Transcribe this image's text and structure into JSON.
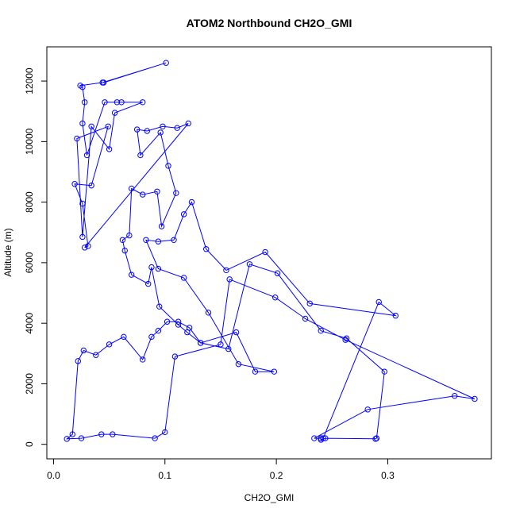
{
  "chart_data": {
    "type": "line",
    "title": "ATOM2 Northbound CH2O_GMI",
    "xlabel": "CH2O_GMI",
    "ylabel": "Altitude (m)",
    "xlim": [
      -0.006,
      0.393
    ],
    "ylim": [
      -480,
      13130
    ],
    "x_ticks": [
      0.0,
      0.1,
      0.2,
      0.3
    ],
    "x_tick_labels": [
      "0.0",
      "0.1",
      "0.2",
      "0.3"
    ],
    "y_ticks": [
      0,
      2000,
      4000,
      6000,
      8000,
      10000,
      12000
    ],
    "y_tick_labels": [
      "0",
      "2000",
      "4000",
      "6000",
      "8000",
      "10000",
      "12000"
    ],
    "grid": false,
    "legend": "none",
    "series": [
      {
        "color": "#0000ff",
        "marker": "open-circle",
        "x": [
          0.045,
          0.101,
          0.044,
          0.024,
          0.026,
          0.028,
          0.026,
          0.03,
          0.046,
          0.057,
          0.061,
          0.08,
          0.055,
          0.05,
          0.034,
          0.026,
          0.021,
          0.049,
          0.034,
          0.019,
          0.026,
          0.031,
          0.028,
          0.121,
          0.111,
          0.098,
          0.084,
          0.075,
          0.078,
          0.096,
          0.103,
          0.11,
          0.097,
          0.093,
          0.08,
          0.07,
          0.068,
          0.062,
          0.064,
          0.07,
          0.085,
          0.088,
          0.095,
          0.112,
          0.12,
          0.132,
          0.157,
          0.176,
          0.201,
          0.24,
          0.263,
          0.297,
          0.29,
          0.289,
          0.244,
          0.24,
          0.24,
          0.234,
          0.282,
          0.36,
          0.378,
          0.262,
          0.226,
          0.199,
          0.158,
          0.15,
          0.109,
          0.1,
          0.091,
          0.053,
          0.043,
          0.025,
          0.012,
          0.017,
          0.022,
          0.027,
          0.038,
          0.05,
          0.063,
          0.08,
          0.088,
          0.094,
          0.102,
          0.112,
          0.122,
          0.132,
          0.164,
          0.181,
          0.198,
          0.166,
          0.139,
          0.117,
          0.094,
          0.083,
          0.094,
          0.108,
          0.117,
          0.124,
          0.137,
          0.155,
          0.19,
          0.23,
          0.307,
          0.292,
          0.242
        ],
        "y": [
          11950,
          12600,
          11950,
          11850,
          11800,
          11300,
          10600,
          9550,
          11300,
          11300,
          11300,
          11300,
          10950,
          9750,
          10500,
          6850,
          10100,
          10500,
          8550,
          8600,
          7950,
          6550,
          6500,
          10600,
          10450,
          10500,
          10350,
          10400,
          9550,
          10300,
          9200,
          8300,
          7200,
          8350,
          8250,
          8450,
          6900,
          6750,
          6400,
          5600,
          5300,
          5850,
          4550,
          3950,
          3700,
          3350,
          3150,
          5950,
          5650,
          3750,
          3500,
          2400,
          200,
          180,
          200,
          150,
          200,
          200,
          1150,
          1600,
          1500,
          3450,
          4150,
          4850,
          5450,
          3300,
          2900,
          400,
          200,
          330,
          330,
          200,
          180,
          330,
          2750,
          3100,
          2950,
          3300,
          3550,
          2800,
          3550,
          3750,
          4050,
          4050,
          3850,
          3350,
          3700,
          2400,
          2400,
          2650,
          4350,
          5500,
          5800,
          6750,
          6700,
          6750,
          7600,
          8000,
          6450,
          5750,
          6350,
          4650,
          4250,
          4700,
          200
        ]
      }
    ]
  }
}
